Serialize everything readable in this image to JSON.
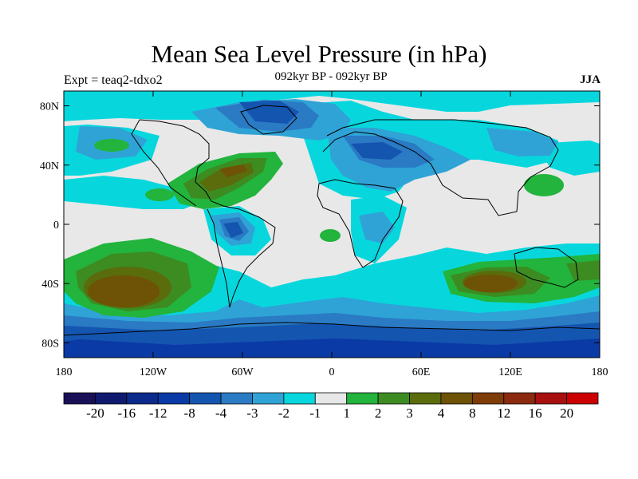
{
  "title": "Mean Sea Level Pressure (in hPa)",
  "subtitle": "092kyr BP - 092kyr BP",
  "left_label": "Expt = teaq2-tdxo2",
  "right_label": "JJA",
  "lat_ticks": [
    {
      "label": "80N",
      "value": 80
    },
    {
      "label": "40N",
      "value": 40
    },
    {
      "label": "0",
      "value": 0
    },
    {
      "label": "40S",
      "value": -40
    },
    {
      "label": "80S",
      "value": -80
    }
  ],
  "lon_ticks": [
    {
      "label": "180",
      "value": -180
    },
    {
      "label": "120W",
      "value": -120
    },
    {
      "label": "60W",
      "value": -60
    },
    {
      "label": "0",
      "value": 0
    },
    {
      "label": "60E",
      "value": 60
    },
    {
      "label": "120E",
      "value": 120
    },
    {
      "label": "180",
      "value": 180
    }
  ],
  "colorbar": {
    "colors": [
      "#1a1058",
      "#0f1a6e",
      "#0c2a8c",
      "#0a3aa6",
      "#1455b0",
      "#2a7ac4",
      "#2fa3d6",
      "#07d7dd",
      "#e8e8e8",
      "#22b43c",
      "#3c8c22",
      "#5a6c0c",
      "#6e5206",
      "#7e3c08",
      "#8c2a10",
      "#a81010",
      "#cc0000"
    ],
    "labels": [
      "-20",
      "-16",
      "-12",
      "-8",
      "-4",
      "-3",
      "-2",
      "-1",
      "1",
      "2",
      "3",
      "4",
      "8",
      "12",
      "16",
      "20"
    ]
  },
  "palette": {
    "ocean_base": "#e8e8e8",
    "neg1": "#07d7dd",
    "neg2": "#2fa3d6",
    "neg3": "#2a7ac4",
    "neg4": "#1455b0",
    "neg8": "#0a3aa6",
    "pos1": "#22b43c",
    "pos2": "#3c8c22",
    "pos3": "#5a6c0c",
    "pos4": "#6e5206",
    "pos8": "#7e3c08"
  }
}
